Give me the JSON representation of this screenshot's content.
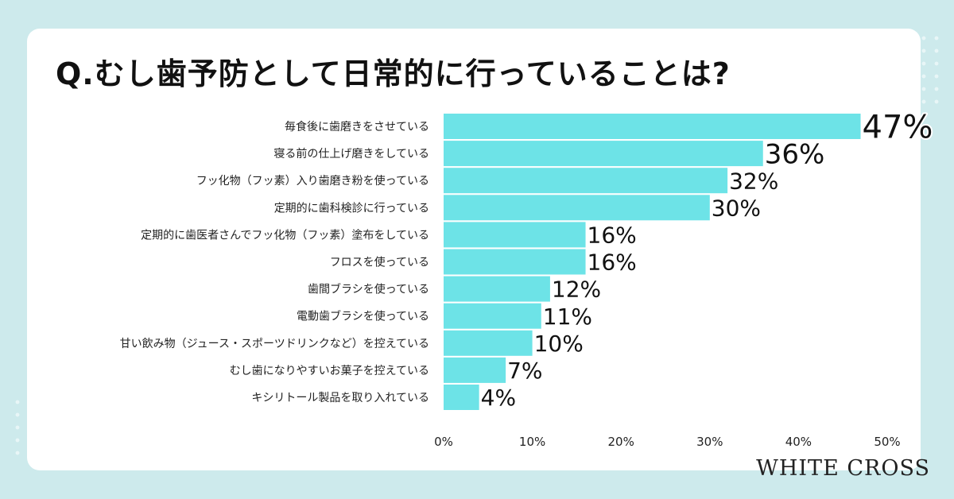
{
  "title": "Q.むし歯予防として日常的に行っていることは?",
  "brand": "WHITE CROSS",
  "chart_data": {
    "type": "bar",
    "orientation": "horizontal",
    "categories": [
      "毎食後に歯磨きをさせている",
      "寝る前の仕上げ磨きをしている",
      "フッ化物（フッ素）入り歯磨き粉を使っている",
      "定期的に歯科検診に行っている",
      "定期的に歯医者さんでフッ化物（フッ素）塗布をしている",
      "フロスを使っている",
      "歯間ブラシを使っている",
      "電動歯ブラシを使っている",
      "甘い飲み物（ジュース・スポーツドリンクなど）を控えている",
      "むし歯になりやすいお菓子を控えている",
      "キシリトール製品を取り入れている"
    ],
    "values": [
      47,
      36,
      32,
      30,
      16,
      16,
      12,
      11,
      10,
      7,
      4
    ],
    "value_labels": [
      "47%",
      "36%",
      "32%",
      "30%",
      "16%",
      "16%",
      "12%",
      "11%",
      "10%",
      "7%",
      "4%"
    ],
    "xlim": [
      0,
      50
    ],
    "xticks": [
      "0%",
      "10%",
      "20%",
      "30%",
      "40%",
      "50%"
    ],
    "grid": false,
    "bar_color": "#6de3e7"
  }
}
